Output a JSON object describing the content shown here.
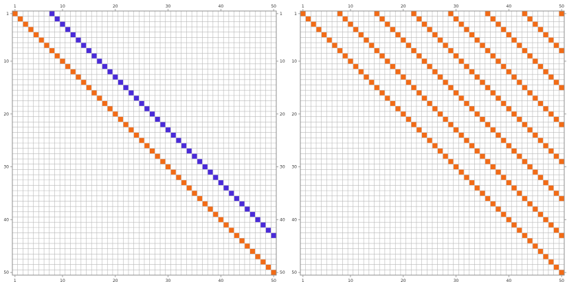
{
  "colors": {
    "grid": "#b8b8b8",
    "frame": "#8c8c8c",
    "background": "#ffffff",
    "orange": "#f26b16",
    "blue": "#4a2bd9"
  },
  "chart_data": [
    {
      "type": "heatmap",
      "title": "",
      "rows": 50,
      "cols": 50,
      "x_ticks": [
        1,
        10,
        20,
        30,
        40,
        50
      ],
      "y_ticks": [
        1,
        10,
        20,
        30,
        40,
        50
      ],
      "x_tick_labels": [
        "1",
        "10",
        "20",
        "30",
        "40",
        "50"
      ],
      "y_tick_labels": [
        "1",
        "10",
        "20",
        "30",
        "40",
        "50"
      ],
      "grid": true,
      "series": [
        {
          "color": "orange",
          "cells": "diagonal",
          "offset": 0,
          "count": 50
        },
        {
          "color": "blue",
          "cells": "diagonal",
          "offset": 7,
          "count": 43
        }
      ]
    },
    {
      "type": "heatmap",
      "title": "",
      "rows": 50,
      "cols": 50,
      "x_ticks": [
        1,
        10,
        20,
        30,
        40,
        50
      ],
      "y_ticks": [
        1,
        10,
        20,
        30,
        40,
        50
      ],
      "x_tick_labels": [
        "1",
        "10",
        "20",
        "30",
        "40",
        "50"
      ],
      "y_tick_labels": [
        "1",
        "10",
        "20",
        "30",
        "40",
        "50"
      ],
      "grid": true,
      "series": [
        {
          "color": "orange",
          "cells": "diagonal",
          "offset": 0,
          "count": 50
        },
        {
          "color": "orange",
          "cells": "diagonal",
          "offset": 7,
          "count": 43
        },
        {
          "color": "orange",
          "cells": "diagonal",
          "offset": 14,
          "count": 36
        },
        {
          "color": "orange",
          "cells": "diagonal",
          "offset": 21,
          "count": 29
        },
        {
          "color": "orange",
          "cells": "diagonal",
          "offset": 28,
          "count": 22
        },
        {
          "color": "orange",
          "cells": "diagonal",
          "offset": 35,
          "count": 15
        },
        {
          "color": "orange",
          "cells": "diagonal",
          "offset": 42,
          "count": 8
        },
        {
          "color": "orange",
          "cells": "diagonal",
          "offset": 49,
          "count": 1
        }
      ]
    }
  ]
}
